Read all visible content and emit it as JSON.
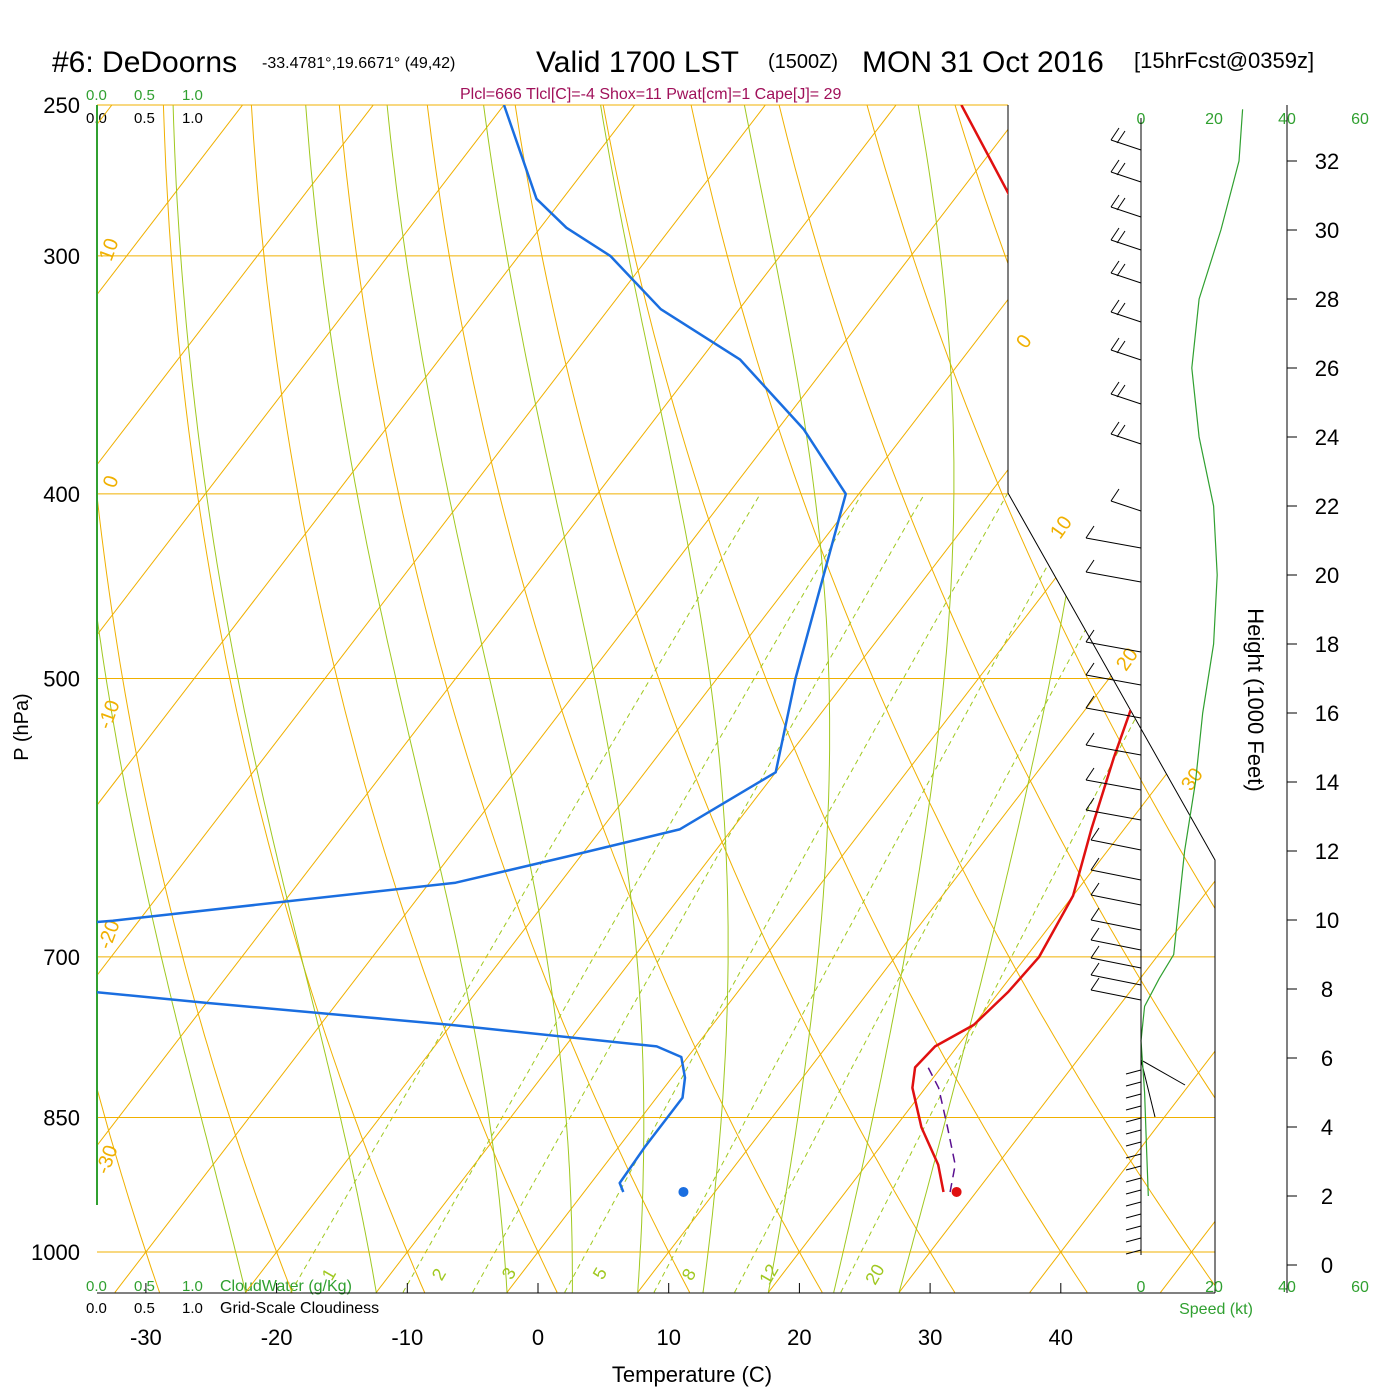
{
  "header": {
    "station": "#6: DeDoorns",
    "coords": "-33.4781°,19.6671° (49,42)",
    "valid": "Valid 1700 LST",
    "zulu": "(1500Z)",
    "date": "MON 31 Oct 2016",
    "forecast": "[15hrFcst@0359z]",
    "indices": "Plcl=666 Tlcl[C]=-4 Shox=11 Pwat[cm]=1 Cape[J]= 29"
  },
  "colors": {
    "temperature": "#e01010",
    "dewpoint": "#1a6ee0",
    "isotherm": "#f0b000",
    "dry_adiabat": "#f0b000",
    "moist_adiabat": "#a0c820",
    "mixing_ratio": "#a0c820",
    "cloud_scale": "#30a030",
    "indices": "#a0105a",
    "parcel": "#5a1090",
    "wind_speed": "#30a030"
  },
  "chart_data": {
    "type": "line",
    "title": "#6: DeDoorns -33.4781°,19.6671° (49,42) Valid 1700 LST (1500Z) MON 31 Oct 2016 [15hrFcst@0359z]",
    "xlabel": "Temperature (C)",
    "ylabel": "P (hPa)",
    "y2label": "Height (1000 Feet)",
    "x_ticks": [
      -30,
      -20,
      -10,
      0,
      10,
      20,
      30,
      40
    ],
    "p_ticks": [
      250,
      300,
      400,
      500,
      700,
      850,
      1000
    ],
    "height_ticks": [
      0,
      2,
      4,
      6,
      8,
      10,
      12,
      14,
      16,
      18,
      20,
      22,
      24,
      26,
      28,
      30,
      32
    ],
    "xlim": [
      -34,
      36
    ],
    "plim": [
      250,
      1050
    ],
    "isotherm_labels": [
      "10",
      "0",
      "-10",
      "-20",
      "-30",
      "0",
      "10",
      "20",
      "30"
    ],
    "mixing_ratio_labels": [
      "1",
      "2",
      "3",
      "5",
      "8",
      "12",
      "20"
    ],
    "cloud_scale": {
      "top_cloudwater": [
        "0.0",
        "0.5",
        "1.0"
      ],
      "top_cloudiness": [
        "0.0",
        "0.5",
        "1.0"
      ],
      "bottom_cloudwater": [
        "0.0",
        "0.5",
        "1.0"
      ],
      "bottom_cloudiness": [
        "0.0",
        "0.5",
        "1.0"
      ],
      "cloudwater_label": "CloudWater (g/Kg)",
      "cloudiness_label": "Grid-Scale Cloudiness"
    },
    "wind_speed": {
      "ticks_top": [
        "0",
        "20",
        "40",
        "60"
      ],
      "ticks_bottom": [
        "0",
        "20",
        "40",
        "60"
      ],
      "label": "Speed (kt)",
      "profile": [
        {
          "h": 2,
          "s": 2
        },
        {
          "h": 3.5,
          "s": 1.5
        },
        {
          "h": 5,
          "s": 1
        },
        {
          "h": 6.5,
          "s": 0
        },
        {
          "h": 7.5,
          "s": 1
        },
        {
          "h": 8.3,
          "s": 5
        },
        {
          "h": 9,
          "s": 9
        },
        {
          "h": 10,
          "s": 10
        },
        {
          "h": 12,
          "s": 12
        },
        {
          "h": 14,
          "s": 15
        },
        {
          "h": 16,
          "s": 17
        },
        {
          "h": 18,
          "s": 20
        },
        {
          "h": 20,
          "s": 21
        },
        {
          "h": 22,
          "s": 20
        },
        {
          "h": 24,
          "s": 16
        },
        {
          "h": 26,
          "s": 14
        },
        {
          "h": 28,
          "s": 16
        },
        {
          "h": 30,
          "s": 22
        },
        {
          "h": 32,
          "s": 27
        },
        {
          "h": 33.5,
          "s": 28
        }
      ]
    },
    "series": [
      {
        "name": "Temperature",
        "points": [
          {
            "p": 930,
            "t": 27.5
          },
          {
            "p": 900,
            "t": 25.5
          },
          {
            "p": 860,
            "t": 22
          },
          {
            "p": 820,
            "t": 19
          },
          {
            "p": 800,
            "t": 18
          },
          {
            "p": 780,
            "t": 18.3
          },
          {
            "p": 760,
            "t": 20
          },
          {
            "p": 730,
            "t": 20.7
          },
          {
            "p": 700,
            "t": 21
          },
          {
            "p": 650,
            "t": 20
          },
          {
            "p": 600,
            "t": 17.5
          },
          {
            "p": 550,
            "t": 15
          },
          {
            "p": 500,
            "t": 12.5
          },
          {
            "p": 450,
            "t": 7
          },
          {
            "p": 400,
            "t": 0
          },
          {
            "p": 350,
            "t": -10
          },
          {
            "p": 300,
            "t": -20
          },
          {
            "p": 250,
            "t": -35
          }
        ]
      },
      {
        "name": "Dewpoint",
        "points": [
          {
            "p": 930,
            "t": 3
          },
          {
            "p": 920,
            "t": 2.2
          },
          {
            "p": 880,
            "t": 2
          },
          {
            "p": 830,
            "t": 2
          },
          {
            "p": 810,
            "t": 1
          },
          {
            "p": 790,
            "t": -0.5
          },
          {
            "p": 780,
            "t": -3
          },
          {
            "p": 760,
            "t": -20
          },
          {
            "p": 740,
            "t": -40
          },
          {
            "p": 716,
            "t": -63
          },
          {
            "p": 690,
            "t": -73
          },
          {
            "p": 670,
            "t": -52
          },
          {
            "p": 640,
            "t": -28
          },
          {
            "p": 620,
            "t": -21
          },
          {
            "p": 600,
            "t": -14
          },
          {
            "p": 560,
            "t": -10
          },
          {
            "p": 500,
            "t": -14
          },
          {
            "p": 400,
            "t": -21
          },
          {
            "p": 370,
            "t": -28
          },
          {
            "p": 340,
            "t": -37
          },
          {
            "p": 320,
            "t": -46
          },
          {
            "p": 300,
            "t": -53
          },
          {
            "p": 290,
            "t": -58
          },
          {
            "p": 280,
            "t": -62
          },
          {
            "p": 250,
            "t": -70
          }
        ]
      },
      {
        "name": "Parcel",
        "points": [
          {
            "p": 930,
            "t": 28
          },
          {
            "p": 900,
            "t": 26.8
          },
          {
            "p": 860,
            "t": 24
          },
          {
            "p": 820,
            "t": 21
          },
          {
            "p": 800,
            "t": 19
          }
        ]
      }
    ],
    "surface_points": [
      {
        "name": "Temperature",
        "p": 930,
        "t": 28.5
      },
      {
        "name": "Dewpoint",
        "p": 930,
        "t": 7.6
      }
    ]
  }
}
